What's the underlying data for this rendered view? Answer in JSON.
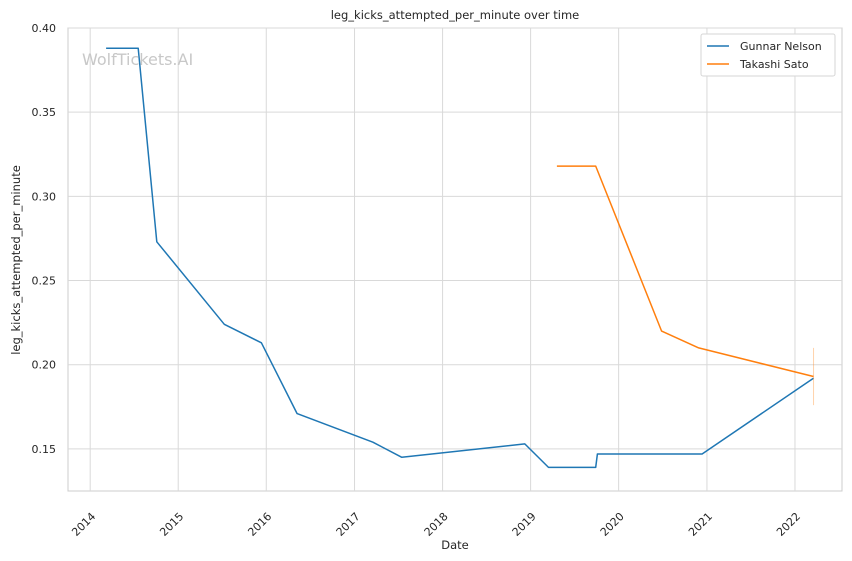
{
  "chart_data": {
    "type": "line",
    "title": "leg_kicks_attempted_per_minute over time",
    "xlabel": "Date",
    "ylabel": "leg_kicks_attempted_per_minute",
    "watermark": "WolfTickets.AI",
    "x_axis": {
      "type": "date",
      "range": [
        "2013-10-01",
        "2022-07-15"
      ]
    },
    "ylim": [
      0.125,
      0.4
    ],
    "x_ticks": [
      "2014",
      "2015",
      "2016",
      "2017",
      "2018",
      "2019",
      "2020",
      "2021",
      "2022"
    ],
    "y_ticks": [
      "0.15",
      "0.20",
      "0.25",
      "0.30",
      "0.35",
      "0.40"
    ],
    "grid": true,
    "legend_position": "top-right",
    "series": [
      {
        "name": "Gunnar Nelson",
        "color": "#1f77b4",
        "points": [
          [
            "2014-03-08",
            0.388
          ],
          [
            "2014-07-19",
            0.388
          ],
          [
            "2014-10-04",
            0.273
          ],
          [
            "2015-07-11",
            0.224
          ],
          [
            "2015-12-12",
            0.213
          ],
          [
            "2016-05-08",
            0.171
          ],
          [
            "2017-03-18",
            0.154
          ],
          [
            "2017-07-16",
            0.145
          ],
          [
            "2018-12-08",
            0.153
          ],
          [
            "2019-03-16",
            0.139
          ],
          [
            "2019-09-28",
            0.139
          ],
          [
            "2019-10-05",
            0.147
          ],
          [
            "2020-12-12",
            0.147
          ],
          [
            "2022-03-19",
            0.192
          ]
        ]
      },
      {
        "name": "Takashi Sato",
        "color": "#ff7f0e",
        "points": [
          [
            "2019-04-20",
            0.318
          ],
          [
            "2019-09-28",
            0.318
          ],
          [
            "2020-06-27",
            0.22
          ],
          [
            "2020-11-28",
            0.21
          ],
          [
            "2022-03-19",
            0.193
          ]
        ],
        "error_bar": {
          "x": "2022-03-19",
          "low": 0.176,
          "high": 0.21
        }
      }
    ]
  }
}
